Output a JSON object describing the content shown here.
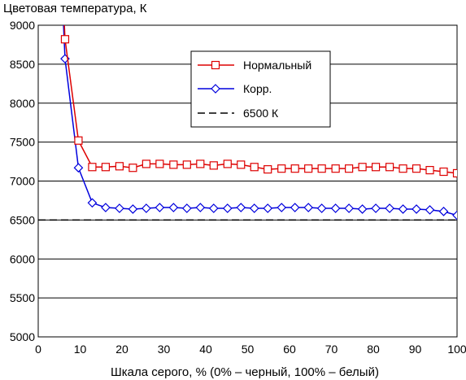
{
  "chart_data": {
    "type": "line",
    "title": "Цветовая температура, К",
    "xlabel": "Шкала серого, % (0% – черный, 100% – белый)",
    "ylabel": "",
    "xlim": [
      0,
      100
    ],
    "ylim": [
      5000,
      9000
    ],
    "x_ticks": [
      "0",
      "10",
      "20",
      "30",
      "40",
      "50",
      "60",
      "70",
      "80",
      "90",
      "100"
    ],
    "y_ticks": [
      "5000",
      "5500",
      "6000",
      "6500",
      "7000",
      "7500",
      "8000",
      "8500",
      "9000"
    ],
    "grid": "horizontal",
    "legend_position": "top-right",
    "series": [
      {
        "name": "Нормальный",
        "color": "#dd0000",
        "marker": "square",
        "x": [
          6.2,
          6.4,
          9.6,
          12.9,
          16.1,
          19.4,
          22.6,
          25.8,
          29.0,
          32.3,
          35.5,
          38.7,
          41.9,
          45.2,
          48.4,
          51.6,
          54.8,
          58.1,
          61.3,
          64.5,
          67.7,
          71.0,
          74.2,
          77.4,
          80.6,
          83.9,
          87.1,
          90.3,
          93.5,
          96.8,
          100.0
        ],
        "y": [
          9050,
          8820,
          7520,
          7180,
          7180,
          7190,
          7170,
          7220,
          7220,
          7210,
          7210,
          7220,
          7200,
          7220,
          7210,
          7180,
          7150,
          7160,
          7160,
          7160,
          7160,
          7160,
          7160,
          7180,
          7180,
          7180,
          7160,
          7160,
          7140,
          7120,
          7100
        ]
      },
      {
        "name": "Корр.",
        "color": "#0000dd",
        "marker": "diamond",
        "x": [
          6.0,
          6.4,
          9.6,
          12.9,
          16.1,
          19.4,
          22.6,
          25.8,
          29.0,
          32.3,
          35.5,
          38.7,
          41.9,
          45.2,
          48.4,
          51.6,
          54.8,
          58.1,
          61.3,
          64.5,
          67.7,
          71.0,
          74.2,
          77.4,
          80.6,
          83.9,
          87.1,
          90.3,
          93.5,
          96.8,
          100.0
        ],
        "y": [
          9050,
          8570,
          7170,
          6720,
          6660,
          6650,
          6640,
          6650,
          6660,
          6660,
          6650,
          6660,
          6650,
          6650,
          6660,
          6650,
          6650,
          6660,
          6660,
          6660,
          6650,
          6650,
          6650,
          6640,
          6650,
          6650,
          6640,
          6640,
          6630,
          6610,
          6560
        ]
      },
      {
        "name": "6500 К",
        "color": "#000000",
        "dashed": true,
        "x": [
          0,
          100
        ],
        "y": [
          6500,
          6500
        ]
      }
    ]
  }
}
